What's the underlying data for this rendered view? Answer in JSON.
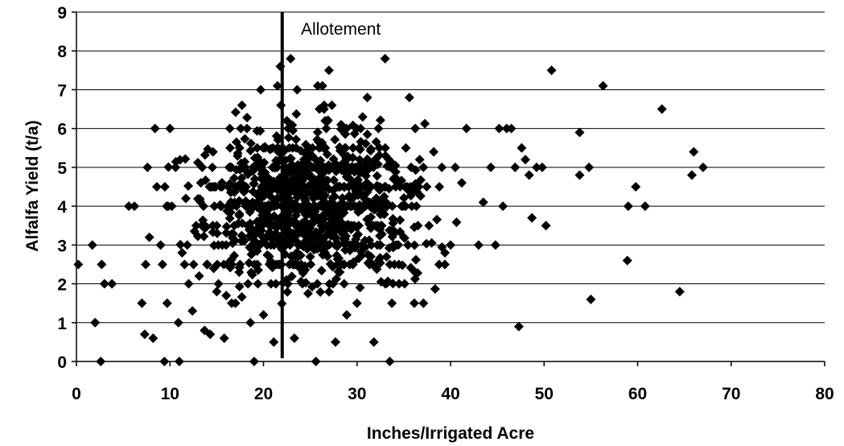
{
  "chart_data": {
    "type": "scatter",
    "xlabel": "Inches/Irrigated Acre",
    "ylabel": "Alfalfa Yield (t/a)",
    "xlim": [
      0,
      80
    ],
    "ylim": [
      0,
      9
    ],
    "x_ticks": [
      "0",
      "10",
      "20",
      "30",
      "40",
      "50",
      "60",
      "70",
      "80"
    ],
    "y_ticks": [
      "0",
      "1",
      "2",
      "3",
      "4",
      "5",
      "6",
      "7",
      "8",
      "9"
    ],
    "grid": "horizontal",
    "marker_color": "#000000",
    "annotation": {
      "label": "Allotement",
      "x": 22
    },
    "points": [
      [
        0.2,
        2.5
      ],
      [
        1.7,
        3.0
      ],
      [
        2.0,
        1.0
      ],
      [
        2.6,
        0.0
      ],
      [
        2.7,
        2.5
      ],
      [
        3.0,
        2.0
      ],
      [
        3.8,
        2.0
      ],
      [
        5.6,
        4.0
      ],
      [
        6.2,
        4.0
      ],
      [
        7.0,
        1.5
      ],
      [
        7.3,
        0.7
      ],
      [
        7.4,
        2.5
      ],
      [
        7.6,
        5.0
      ],
      [
        7.8,
        3.2
      ],
      [
        8.2,
        0.6
      ],
      [
        8.4,
        6.0
      ],
      [
        8.6,
        4.5
      ],
      [
        9.0,
        3.0
      ],
      [
        9.2,
        2.5
      ],
      [
        9.4,
        0.0
      ],
      [
        9.7,
        1.5
      ],
      [
        10.0,
        6.0
      ],
      [
        10.2,
        4.0
      ],
      [
        10.6,
        5.0
      ],
      [
        10.9,
        1.0
      ],
      [
        11.0,
        0.0
      ],
      [
        11.3,
        2.8
      ],
      [
        11.7,
        4.2
      ],
      [
        12.0,
        2.0
      ],
      [
        12.4,
        1.3
      ],
      [
        12.8,
        3.5
      ],
      [
        13.3,
        4.6
      ],
      [
        13.7,
        0.8
      ],
      [
        14.0,
        2.5
      ],
      [
        14.3,
        0.7
      ],
      [
        14.6,
        5.4
      ],
      [
        15.0,
        1.8
      ],
      [
        15.4,
        4.5
      ],
      [
        15.8,
        0.6
      ],
      [
        16.0,
        3.0
      ],
      [
        16.4,
        6.0
      ],
      [
        17.0,
        1.5
      ],
      [
        17.4,
        2.3
      ],
      [
        17.7,
        6.6
      ],
      [
        18.1,
        4.0
      ],
      [
        18.6,
        1.0
      ],
      [
        19.0,
        0.0
      ],
      [
        19.4,
        2.0
      ],
      [
        19.7,
        7.0
      ],
      [
        20.0,
        1.2
      ],
      [
        20.6,
        3.6
      ],
      [
        21.1,
        0.5
      ],
      [
        21.5,
        7.1
      ],
      [
        21.8,
        7.6
      ],
      [
        22.5,
        6.2
      ],
      [
        22.9,
        7.8
      ],
      [
        23.3,
        0.6
      ],
      [
        23.6,
        7.0
      ],
      [
        24.4,
        4.2
      ],
      [
        25.2,
        5.3
      ],
      [
        25.6,
        0.0
      ],
      [
        25.8,
        7.1
      ],
      [
        26.3,
        7.1
      ],
      [
        26.6,
        6.2
      ],
      [
        27.0,
        7.5
      ],
      [
        27.7,
        0.5
      ],
      [
        28.3,
        6.1
      ],
      [
        28.9,
        1.2
      ],
      [
        29.5,
        4.6
      ],
      [
        30.0,
        1.5
      ],
      [
        30.6,
        6.3
      ],
      [
        31.1,
        6.8
      ],
      [
        31.8,
        0.5
      ],
      [
        32.3,
        2.6
      ],
      [
        33.0,
        7.8
      ],
      [
        33.5,
        0.0
      ],
      [
        34.0,
        2.5
      ],
      [
        34.5,
        2.0
      ],
      [
        35.0,
        3.2
      ],
      [
        35.6,
        6.8
      ],
      [
        36.2,
        2.3
      ],
      [
        36.7,
        5.2
      ],
      [
        37.1,
        1.5
      ],
      [
        37.7,
        3.5
      ],
      [
        38.2,
        5.4
      ],
      [
        38.8,
        4.5
      ],
      [
        39.4,
        2.8
      ],
      [
        40.0,
        3.0
      ],
      [
        40.5,
        5.0
      ],
      [
        41.2,
        4.6
      ],
      [
        41.7,
        6.0
      ],
      [
        43.0,
        3.0
      ],
      [
        43.5,
        4.1
      ],
      [
        44.3,
        5.0
      ],
      [
        44.8,
        3.0
      ],
      [
        45.2,
        6.0
      ],
      [
        45.6,
        4.0
      ],
      [
        46.0,
        6.0
      ],
      [
        46.5,
        6.0
      ],
      [
        46.9,
        5.0
      ],
      [
        47.3,
        0.9
      ],
      [
        47.6,
        5.5
      ],
      [
        48.0,
        5.2
      ],
      [
        48.4,
        4.8
      ],
      [
        48.7,
        3.7
      ],
      [
        49.2,
        5.0
      ],
      [
        49.8,
        5.0
      ],
      [
        50.2,
        3.5
      ],
      [
        50.8,
        7.5
      ],
      [
        53.8,
        5.9
      ],
      [
        53.8,
        4.8
      ],
      [
        54.8,
        5.0
      ],
      [
        55.0,
        1.6
      ],
      [
        56.3,
        7.1
      ],
      [
        58.9,
        2.6
      ],
      [
        59.0,
        4.0
      ],
      [
        59.8,
        4.5
      ],
      [
        60.8,
        4.0
      ],
      [
        62.6,
        6.5
      ],
      [
        64.5,
        1.8
      ],
      [
        65.8,
        4.8
      ],
      [
        66.0,
        5.4
      ],
      [
        67.0,
        5.0
      ]
    ],
    "cluster": {
      "x_range": [
        8,
        42
      ],
      "y_range": [
        0.5,
        6.6
      ],
      "count": 1100
    }
  }
}
